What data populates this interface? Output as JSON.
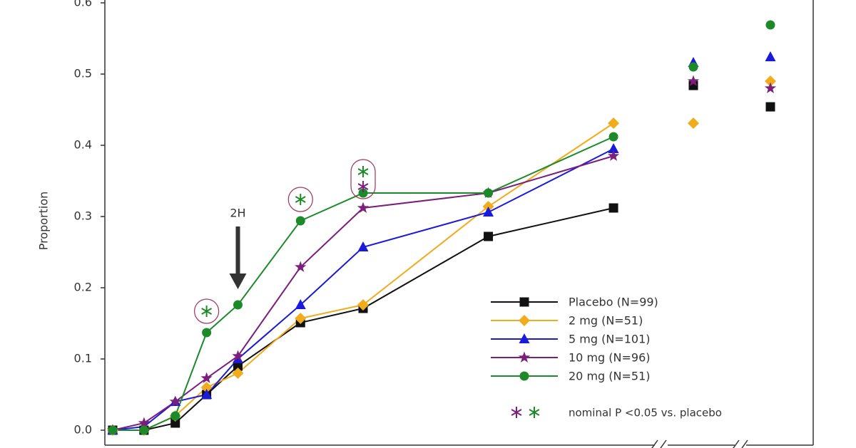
{
  "chart_data": {
    "type": "line",
    "y_label": "Proportion",
    "annotation": "2H",
    "annotation_x": 2,
    "x": [
      0,
      0.5,
      1,
      1.5,
      2,
      3,
      4,
      6,
      8
    ],
    "xlim": [
      -0.125,
      8.66
    ],
    "later_categories": [
      null,
      null
    ],
    "ylim": [
      -0.021,
      0.604
    ],
    "yticks": [
      {
        "value": 0,
        "label": "0.0"
      },
      0.1,
      0.2,
      0.3,
      0.4,
      0.5,
      0.6
    ],
    "significance_label": "nominal P <0.05 vs. placebo",
    "series": [
      {
        "name": "Placebo (N=99)",
        "color": "#111111",
        "marker": "square",
        "values": [
          0,
          0,
          0.01,
          0.05,
          0.09,
          0.151,
          0.171,
          0.272,
          0.312
        ],
        "later_values": [
          0.484,
          0.454
        ],
        "significant": []
      },
      {
        "name": "2 mg (N=51)",
        "color": "#f0ac1c",
        "marker": "diamond",
        "values": [
          0,
          0,
          0.02,
          0.06,
          0.08,
          0.157,
          0.176,
          0.314,
          0.431
        ],
        "later_values": [
          0.431,
          0.49
        ],
        "significant": []
      },
      {
        "name": "5 mg (N=101)",
        "color": "#1a1adb",
        "marker": "triangle",
        "values": [
          0,
          0.005,
          0.04,
          0.05,
          0.1,
          0.176,
          0.257,
          0.306,
          0.395
        ],
        "later_values": [
          0.516,
          0.524
        ],
        "significant": []
      },
      {
        "name": "10 mg (N=96)",
        "color": "#7b1f7b",
        "marker": "star",
        "values": [
          0,
          0.01,
          0.04,
          0.073,
          0.104,
          0.229,
          0.312,
          0.333,
          0.385
        ],
        "later_values": [
          0.49,
          0.48
        ],
        "significant": [
          6
        ]
      },
      {
        "name": "20 mg (N=51)",
        "color": "#1d8a2a",
        "marker": "circle",
        "values": [
          0,
          0,
          0.02,
          0.137,
          0.176,
          0.294,
          0.333,
          0.333,
          0.412
        ],
        "later_values": [
          0.51,
          0.569
        ],
        "significant": [
          3,
          5,
          6
        ]
      }
    ]
  }
}
